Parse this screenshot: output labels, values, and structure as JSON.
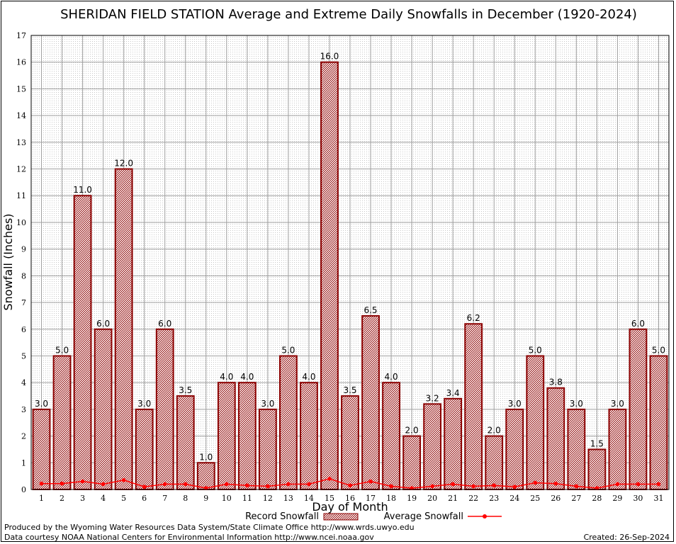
{
  "chart_data": {
    "type": "bar",
    "title": "SHERIDAN FIELD STATION Average and Extreme Daily Snowfalls in December (1920-2024)",
    "xlabel": "Day of Month",
    "ylabel": "Snowfall (Inches)",
    "ylim": [
      0,
      17
    ],
    "yticks": [
      "0",
      "1",
      "2",
      "3",
      "4",
      "5",
      "6",
      "7",
      "8",
      "9",
      "10",
      "11",
      "12",
      "13",
      "14",
      "15",
      "16",
      "17"
    ],
    "categories": [
      "1",
      "2",
      "3",
      "4",
      "5",
      "6",
      "7",
      "8",
      "9",
      "10",
      "11",
      "12",
      "13",
      "14",
      "15",
      "16",
      "17",
      "18",
      "19",
      "20",
      "21",
      "22",
      "23",
      "24",
      "25",
      "26",
      "27",
      "28",
      "29",
      "30",
      "31"
    ],
    "grid": true,
    "legend_position": "bottom",
    "series": [
      {
        "name": "Record Snowfall",
        "type": "bar",
        "color": "#8b0000",
        "values": [
          3.0,
          5.0,
          11.0,
          6.0,
          12.0,
          3.0,
          6.0,
          3.5,
          1.0,
          4.0,
          4.0,
          3.0,
          5.0,
          4.0,
          16.0,
          3.5,
          6.5,
          4.0,
          2.0,
          3.2,
          3.4,
          6.2,
          2.0,
          3.0,
          5.0,
          3.8,
          3.0,
          1.5,
          3.0,
          6.0,
          5.0
        ],
        "labels": [
          "3.0",
          "5.0",
          "11.0",
          "6.0",
          "12.0",
          "3.0",
          "6.0",
          "3.5",
          "1.0",
          "4.0",
          "4.0",
          "3.0",
          "5.0",
          "4.0",
          "16.0",
          "3.5",
          "6.5",
          "4.0",
          "2.0",
          "3.2",
          "3.4",
          "6.2",
          "2.0",
          "3.0",
          "5.0",
          "3.8",
          "3.0",
          "1.5",
          "3.0",
          "6.0",
          "5.0"
        ]
      },
      {
        "name": "Average Snowfall",
        "type": "line",
        "color": "#ff0000",
        "values": [
          0.22,
          0.22,
          0.3,
          0.2,
          0.35,
          0.1,
          0.2,
          0.2,
          0.05,
          0.2,
          0.15,
          0.12,
          0.2,
          0.2,
          0.4,
          0.15,
          0.3,
          0.12,
          0.05,
          0.12,
          0.2,
          0.12,
          0.15,
          0.1,
          0.25,
          0.22,
          0.12,
          0.05,
          0.2,
          0.2,
          0.2
        ]
      }
    ]
  },
  "footer": {
    "left_line1": "Produced by the Wyoming Water Resources Data System/State Climate Office http://www.wrds.uwyo.edu",
    "left_line2": "Data courtesy NOAA National Centers for Environmental Information http://www.ncei.noaa.gov",
    "created": "Created: 26-Sep-2024"
  }
}
